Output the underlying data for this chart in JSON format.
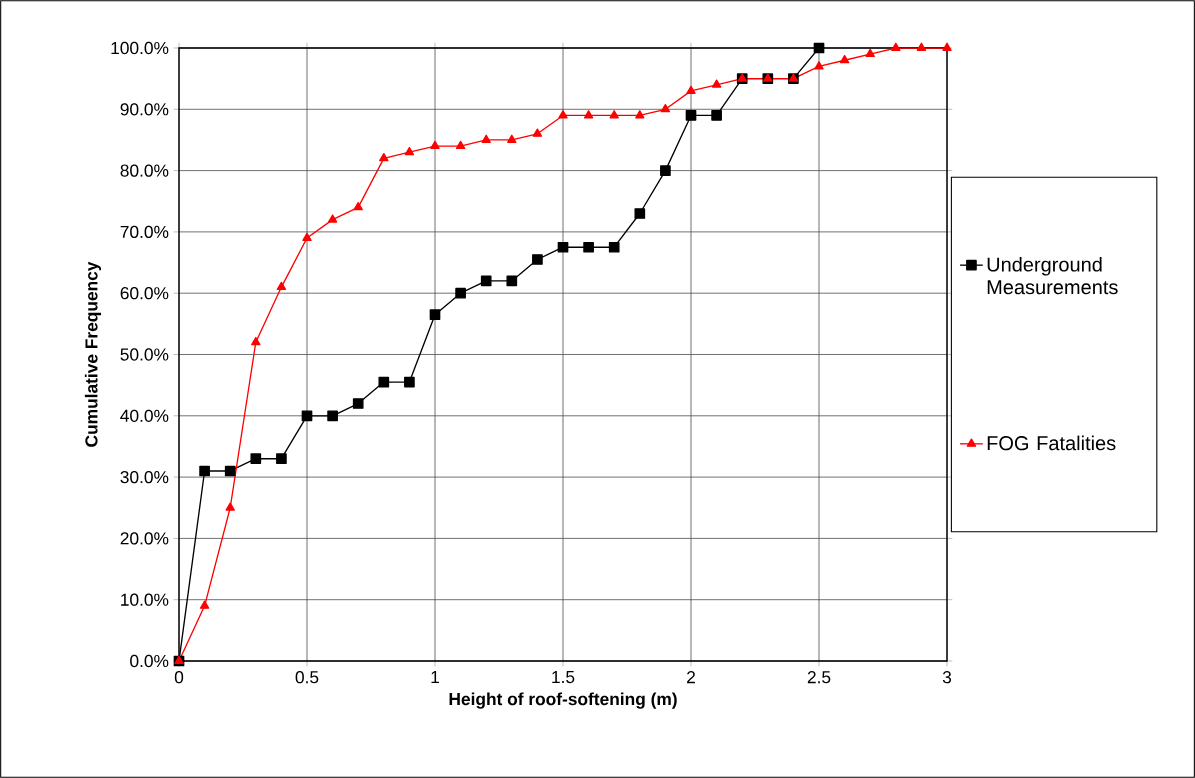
{
  "chart_data": {
    "type": "line",
    "xlabel": "Height of roof-softening (m)",
    "ylabel": "Cumulative Frequency",
    "x": [
      0,
      0.1,
      0.2,
      0.3,
      0.4,
      0.5,
      0.6,
      0.7,
      0.8,
      0.9,
      1.0,
      1.1,
      1.2,
      1.3,
      1.4,
      1.5,
      1.6,
      1.7,
      1.8,
      1.9,
      2.0,
      2.1,
      2.2,
      2.3,
      2.4,
      2.5,
      2.6,
      2.7,
      2.8,
      2.9,
      3.0
    ],
    "series": [
      {
        "name": "Underground Measurements",
        "color": "#000000",
        "marker": "square",
        "x": [
          0,
          0.1,
          0.2,
          0.3,
          0.4,
          0.5,
          0.6,
          0.7,
          0.8,
          0.9,
          1.0,
          1.1,
          1.2,
          1.3,
          1.4,
          1.5,
          1.6,
          1.7,
          1.8,
          1.9,
          2.0,
          2.1,
          2.2,
          2.3,
          2.4,
          2.5
        ],
        "values": [
          0,
          31,
          31,
          33,
          33,
          40,
          40,
          42,
          45.5,
          45.5,
          56.5,
          60,
          62,
          62,
          65.5,
          67.5,
          67.5,
          67.5,
          73,
          80,
          89,
          89,
          95,
          95,
          95,
          100
        ]
      },
      {
        "name": "FOG Fatalities",
        "color": "#ff0000",
        "marker": "triangle",
        "values": [
          0,
          9,
          25,
          52,
          61,
          69,
          72,
          74,
          82,
          83,
          84,
          84,
          85,
          85,
          86,
          89,
          89,
          89,
          89,
          90,
          93,
          94,
          95,
          95,
          95,
          97,
          98,
          99,
          100,
          100,
          100
        ]
      }
    ],
    "xlim": [
      0,
      3
    ],
    "ylim": [
      0,
      100
    ],
    "xticks": [
      0,
      0.5,
      1,
      1.5,
      2,
      2.5,
      3
    ],
    "yticks": [
      {
        "value": 0,
        "label": "0.0%"
      },
      {
        "value": 10,
        "label": "10.0%"
      },
      {
        "value": 20,
        "label": "20.0%"
      },
      {
        "value": 30,
        "label": "30.0%"
      },
      {
        "value": 40,
        "label": "40.0%"
      },
      {
        "value": 50,
        "label": "50.0%"
      },
      {
        "value": 60,
        "label": "60.0%"
      },
      {
        "value": 70,
        "label": "70.0%"
      },
      {
        "value": 80,
        "label": "80.0%"
      },
      {
        "value": 90,
        "label": "90.0%"
      },
      {
        "value": 100,
        "label": "100.0%"
      }
    ],
    "grid": true,
    "legend": "right",
    "line_style": "solid"
  }
}
